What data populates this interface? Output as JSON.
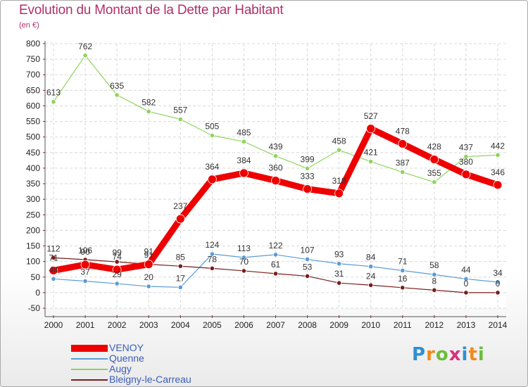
{
  "chart_data": {
    "type": "line",
    "title": "Evolution du Montant de la Dette par Habitant",
    "subtitle": "(en €)",
    "categories": [
      "2000",
      "2001",
      "2002",
      "2003",
      "2004",
      "2005",
      "2006",
      "2007",
      "2008",
      "2009",
      "2010",
      "2011",
      "2012",
      "2013",
      "2014"
    ],
    "ylim": [
      -50,
      800
    ],
    "yticks": [
      -50,
      0,
      50,
      100,
      150,
      200,
      250,
      300,
      350,
      400,
      450,
      500,
      550,
      600,
      650,
      700,
      750,
      800
    ],
    "grid": true,
    "legend_position": "bottom-left",
    "series": [
      {
        "name": "Augy",
        "color": "#8ed45c",
        "values": [
          613,
          762,
          635,
          582,
          557,
          505,
          485,
          439,
          399,
          458,
          421,
          387,
          355,
          437,
          442
        ]
      },
      {
        "name": "Quenne",
        "color": "#5b9bd5",
        "values": [
          44,
          37,
          29,
          20,
          17,
          124,
          113,
          122,
          107,
          93,
          84,
          71,
          58,
          44,
          34
        ]
      },
      {
        "name": "Bleigny-le-Carreau",
        "color": "#7a1c1c",
        "values": [
          112,
          106,
          99,
          91,
          85,
          78,
          70,
          61,
          53,
          31,
          24,
          16,
          8,
          0,
          0
        ]
      },
      {
        "name": "VENOY",
        "color": "#ee0000",
        "values": [
          71,
          90,
          74,
          91,
          237,
          364,
          384,
          360,
          333,
          319,
          527,
          478,
          428,
          380,
          346
        ]
      }
    ]
  },
  "legend": {
    "items": [
      {
        "label": "VENOY",
        "color": "#ee0000"
      },
      {
        "label": "Quenne",
        "color": "#5b9bd5"
      },
      {
        "label": "Augy",
        "color": "#8ed45c"
      },
      {
        "label": "Bleigny-le-Carreau",
        "color": "#7a1c1c"
      }
    ]
  },
  "logo": {
    "letters": [
      "P",
      "r",
      "o",
      "x",
      "i",
      "t",
      "i"
    ],
    "colors": [
      "#2e8fd4",
      "#f08a1c",
      "#6cbd3c",
      "#d6317c",
      "#2e8fd4",
      "#f08a1c",
      "#6cbd3c"
    ]
  }
}
